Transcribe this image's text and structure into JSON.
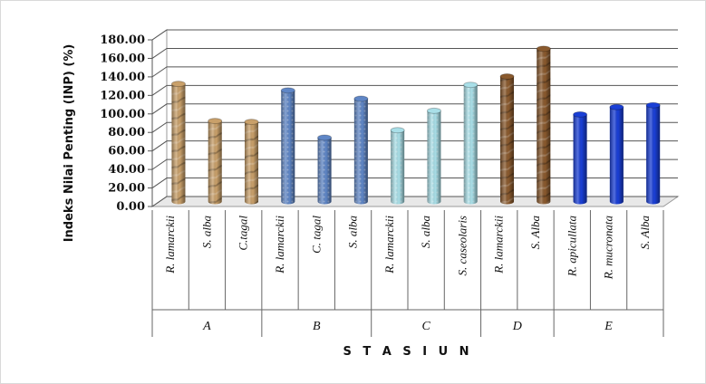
{
  "chart_data": {
    "type": "bar",
    "ylabel": "Indeks Nilai Penting  (INP) (%)",
    "xlabel": "S T A S I U N",
    "ylim": [
      0,
      180
    ],
    "ytick_step": 20,
    "yticks": [
      "0.00",
      "20.00",
      "40.00",
      "60.00",
      "80.00",
      "100.00",
      "120.00",
      "140.00",
      "160.00",
      "180.00"
    ],
    "grid": true,
    "legend": "none",
    "groups": [
      {
        "label": "A",
        "bars": [
          {
            "category": "R. lamarckii",
            "value": 127,
            "color": "#c9a06a"
          },
          {
            "category": "S. alba",
            "value": 87,
            "color": "#c9a06a"
          },
          {
            "category": "C.tagal",
            "value": 86,
            "color": "#c9a06a"
          }
        ]
      },
      {
        "label": "B",
        "bars": [
          {
            "category": "R. lamarckii",
            "value": 120,
            "color": "#5f86c6"
          },
          {
            "category": "C. tagal",
            "value": 69,
            "color": "#5f86c6"
          },
          {
            "category": "S. alba",
            "value": 111,
            "color": "#5f86c6"
          }
        ]
      },
      {
        "label": "C",
        "bars": [
          {
            "category": "R. lamarckii",
            "value": 77,
            "color": "#a9dfe8"
          },
          {
            "category": "S. alba",
            "value": 98,
            "color": "#a9dfe8"
          },
          {
            "category": "S. caseolaris",
            "value": 126,
            "color": "#a9dfe8"
          }
        ]
      },
      {
        "label": "D",
        "bars": [
          {
            "category": "R. lamarckii",
            "value": 135,
            "color": "#8a5a2e"
          },
          {
            "category": "S. Alba",
            "value": 165,
            "color": "#8a5a2e"
          }
        ]
      },
      {
        "label": "E",
        "bars": [
          {
            "category": "R. apicullata",
            "value": 94,
            "color": "#1a3fd6"
          },
          {
            "category": "R. mucronata",
            "value": 102,
            "color": "#1a3fd6"
          },
          {
            "category": "S. Alba",
            "value": 104,
            "color": "#1a3fd6"
          }
        ]
      }
    ]
  }
}
